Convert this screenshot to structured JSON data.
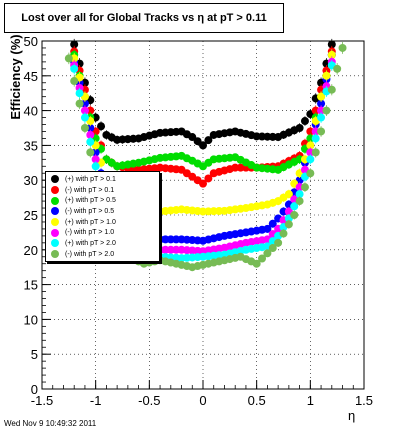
{
  "title": "Lost over all for Global Tracks vs    η at pT > 0.11",
  "footer": "Wed Nov  9 10:49:32 2011",
  "colors": {
    "axis": "#000000",
    "grid": "#000000"
  },
  "chart_data": {
    "type": "scatter",
    "xlabel": "η",
    "ylabel": "Efficiency (%)",
    "xlim": [
      -1.5,
      1.5
    ],
    "ylim": [
      0,
      50
    ],
    "grid": true,
    "legend_position": "left",
    "x_ticks": [
      "-1.5",
      "-1",
      "-0.5",
      "0",
      "0.5",
      "1",
      "1.5"
    ],
    "y_ticks": [
      "0",
      "5",
      "10",
      "15",
      "20",
      "25",
      "30",
      "35",
      "40",
      "45",
      "50"
    ],
    "series": [
      {
        "name": "(+) with pT > 0.1",
        "color": "#000000",
        "x": [
          -1.2,
          -1.1,
          -1.0,
          -0.9,
          -0.8,
          -0.6,
          -0.4,
          -0.2,
          -0.1,
          0.0,
          0.1,
          0.3,
          0.5,
          0.7,
          0.9,
          1.0,
          1.1,
          1.2
        ],
        "y": [
          49.5,
          44,
          39,
          36.5,
          35.8,
          36,
          36.8,
          37,
          36.2,
          35,
          36.5,
          37,
          36.3,
          36.2,
          37.5,
          39.5,
          44,
          49.5
        ]
      },
      {
        "name": "(-) with pT > 0.1",
        "color": "#ff0000",
        "x": [
          -1.2,
          -1.1,
          -1.0,
          -0.9,
          -0.8,
          -0.6,
          -0.4,
          -0.2,
          -0.1,
          0.0,
          0.1,
          0.3,
          0.5,
          0.7,
          0.9,
          1.0,
          1.1,
          1.2
        ],
        "y": [
          48.5,
          43,
          37,
          33,
          32,
          31.5,
          31.8,
          31.5,
          30.5,
          29.5,
          31,
          31.8,
          31.8,
          32,
          33.5,
          37,
          43,
          48.5
        ]
      },
      {
        "name": "(+) with pT > 0.5",
        "color": "#00dd00",
        "x": [
          -1.2,
          -1.1,
          -1.0,
          -0.9,
          -0.8,
          -0.6,
          -0.4,
          -0.2,
          -0.1,
          0.0,
          0.1,
          0.3,
          0.5,
          0.7,
          0.9,
          1.0,
          1.1,
          1.2
        ],
        "y": [
          48,
          42,
          36,
          33,
          32,
          32.5,
          33.2,
          33.5,
          32.8,
          32,
          33,
          33.3,
          31.8,
          31.5,
          33,
          36,
          42,
          48
        ]
      },
      {
        "name": "(-) with pT > 0.5",
        "color": "#0000ff",
        "x": [
          -1.2,
          -1.1,
          -1.0,
          -0.9,
          -0.8,
          -0.6,
          -0.4,
          -0.2,
          0.0,
          0.2,
          0.4,
          0.6,
          0.7,
          0.8,
          0.9,
          1.0,
          1.1,
          1.2
        ],
        "y": [
          47,
          41,
          34,
          28,
          24,
          22,
          21.5,
          21.5,
          21.3,
          22,
          22.5,
          23,
          24.5,
          26.5,
          30,
          35,
          41,
          48
        ]
      },
      {
        "name": "(+) with pT > 1.0",
        "color": "#ffff00",
        "x": [
          -1.2,
          -1.1,
          -1.0,
          -0.9,
          -0.8,
          -0.6,
          -0.4,
          -0.2,
          0.0,
          0.2,
          0.4,
          0.6,
          0.7,
          0.8,
          0.9,
          1.0,
          1.1,
          1.2
        ],
        "y": [
          47.5,
          42,
          35,
          30,
          27,
          26,
          25.5,
          25.8,
          25.5,
          25.6,
          26,
          26.5,
          27,
          28,
          31,
          35,
          42,
          48
        ]
      },
      {
        "name": "(-) with pT > 1.0",
        "color": "#ff00ff",
        "x": [
          -1.2,
          -1.1,
          -1.0,
          -0.9,
          -0.8,
          -0.6,
          -0.4,
          -0.2,
          0.0,
          0.2,
          0.4,
          0.6,
          0.7,
          0.8,
          0.9,
          1.0,
          1.1,
          1.2
        ],
        "y": [
          46.5,
          40,
          33,
          27,
          23,
          20.5,
          20,
          20,
          19.8,
          20.3,
          21,
          21.5,
          23,
          25.5,
          29,
          34,
          40,
          47
        ]
      },
      {
        "name": "(+) with pT > 2.0",
        "color": "#00ffff",
        "x": [
          -1.2,
          -1.1,
          -1.0,
          -0.9,
          -0.8,
          -0.6,
          -0.4,
          -0.2,
          0.0,
          0.2,
          0.4,
          0.6,
          0.7,
          0.8,
          0.9,
          1.0,
          1.1,
          1.2
        ],
        "y": [
          46,
          39,
          32,
          26,
          22,
          19.5,
          19,
          18.8,
          19,
          19.3,
          20,
          20.5,
          22,
          24.5,
          28,
          33,
          39,
          46.5
        ]
      },
      {
        "name": "(-) with pT > 2.0",
        "color": "#77bb55",
        "x": [
          -1.25,
          -1.15,
          -1.05,
          -0.95,
          -0.85,
          -0.7,
          -0.55,
          -0.4,
          -0.25,
          -0.1,
          0.05,
          0.2,
          0.35,
          0.5,
          0.7,
          0.85,
          1.0,
          1.15,
          1.3
        ],
        "y": [
          47.5,
          41,
          34,
          27,
          22,
          19,
          18,
          18.5,
          18,
          17.5,
          18,
          18.5,
          19,
          18,
          21,
          25,
          31,
          40,
          49
        ]
      }
    ]
  }
}
